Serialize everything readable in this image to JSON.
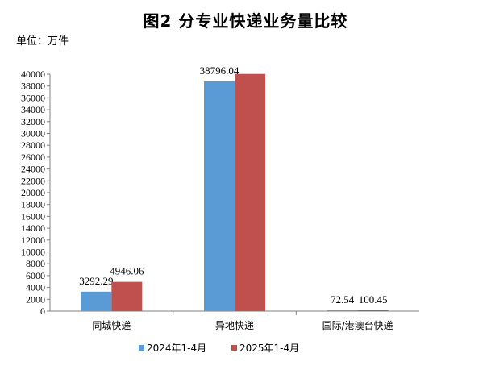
{
  "header": {
    "title": "图2 分专业快递业务量比较",
    "unit": "单位：万件"
  },
  "colors": {
    "series_2024": "#5b9bd5",
    "series_2025": "#c0504d",
    "axis": "#808080"
  },
  "chart_data": {
    "type": "bar",
    "title": "图2 分专业快递业务量比较",
    "ylabel": "单位：万件",
    "xlabel": "",
    "categories": [
      "同城快递",
      "异地快递",
      "国际/港澳台快递"
    ],
    "ylim": [
      0,
      40000
    ],
    "ytick_step": 2000,
    "grid": false,
    "legend_position": "bottom",
    "series": [
      {
        "name": "2024年1-4月",
        "values": [
          3292.29,
          38796.04,
          72.54
        ],
        "labels": [
          "3292.29",
          "38796.04",
          "72.54"
        ]
      },
      {
        "name": "2025年1-4月",
        "values": [
          4946.06,
          40040.51,
          100.45
        ],
        "labels": [
          "4946.06",
          "",
          "100.45"
        ]
      }
    ]
  }
}
